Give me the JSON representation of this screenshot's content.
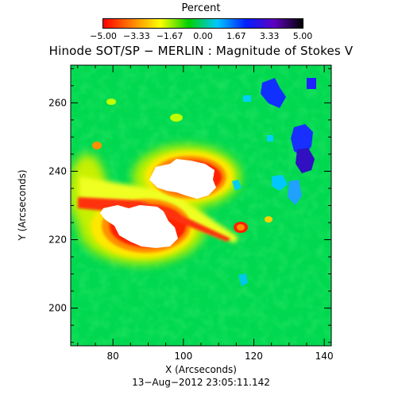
{
  "colorbar": {
    "title": "Percent",
    "ticks": [
      "−5.00",
      "−3.33",
      "−1.67",
      "0.00",
      "1.67",
      "3.33",
      "5.00"
    ],
    "tick_values": [
      -5.0,
      -3.33,
      -1.67,
      0.0,
      1.67,
      3.33,
      5.0
    ],
    "stops": [
      "#ff0000",
      "#ff8000",
      "#ffff00",
      "#00d000",
      "#00c8ff",
      "#0020ff",
      "#6000c0",
      "#000000"
    ]
  },
  "chart_data": {
    "type": "heatmap",
    "title": "Hinode SOT/SP − MERLIN : Magnitude of Stokes V",
    "xlabel": "X (Arcseconds)",
    "ylabel": "Y (Arcseconds)",
    "xlim": [
      68,
      142
    ],
    "ylim": [
      189,
      271
    ],
    "x_ticks": [
      80,
      100,
      120,
      140
    ],
    "y_ticks": [
      200,
      220,
      240,
      260
    ],
    "value_range": [
      -5.0,
      5.0
    ],
    "unit": "Percent",
    "background_color": "#00d850",
    "features": [
      {
        "kind": "strong-field core",
        "region": "upper",
        "center": [
          99,
          236
        ],
        "color": "#ffffff"
      },
      {
        "kind": "strong-field core",
        "region": "lower",
        "center": [
          90,
          223
        ],
        "color": "#ffffff"
      },
      {
        "kind": "opposite-polarity patches",
        "region": "right edge",
        "center": [
          132,
          245
        ],
        "color": "#1020ff"
      }
    ]
  },
  "footer": {
    "timestamp": "13−Aug−2012 23:05:11.142"
  }
}
